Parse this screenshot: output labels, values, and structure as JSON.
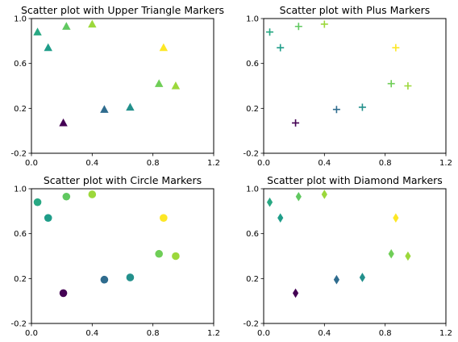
{
  "chart_data": [
    {
      "type": "scatter",
      "title": "Scatter plot with Upper Triangle Markers",
      "marker": "triangle-up",
      "colormap": "viridis",
      "xlim": [
        0.0,
        1.2
      ],
      "ylim": [
        -0.2,
        1.0
      ],
      "xticks": [
        "0.0",
        "0.4",
        "0.8",
        "1.2"
      ],
      "yticks": [
        "-0.2",
        "0.2",
        "0.6",
        "1.0"
      ],
      "grid": false,
      "points": [
        {
          "x": 0.04,
          "y": 0.88,
          "c": 0.6
        },
        {
          "x": 0.11,
          "y": 0.74,
          "c": 0.55
        },
        {
          "x": 0.23,
          "y": 0.93,
          "c": 0.75
        },
        {
          "x": 0.4,
          "y": 0.95,
          "c": 0.85
        },
        {
          "x": 0.87,
          "y": 0.74,
          "c": 1.0
        },
        {
          "x": 0.84,
          "y": 0.42,
          "c": 0.78
        },
        {
          "x": 0.95,
          "y": 0.4,
          "c": 0.85
        },
        {
          "x": 0.21,
          "y": 0.07,
          "c": 0.0
        },
        {
          "x": 0.48,
          "y": 0.19,
          "c": 0.35
        },
        {
          "x": 0.65,
          "y": 0.21,
          "c": 0.5
        }
      ]
    },
    {
      "type": "scatter",
      "title": "Scatter plot with Plus Markers",
      "marker": "plus",
      "colormap": "viridis",
      "xlim": [
        0.0,
        1.2
      ],
      "ylim": [
        -0.2,
        1.0
      ],
      "xticks": [
        "0.0",
        "0.4",
        "0.8",
        "1.2"
      ],
      "yticks": [
        "-0.2",
        "0.2",
        "0.6",
        "1.0"
      ],
      "grid": false,
      "points": [
        {
          "x": 0.04,
          "y": 0.88,
          "c": 0.6
        },
        {
          "x": 0.11,
          "y": 0.74,
          "c": 0.55
        },
        {
          "x": 0.23,
          "y": 0.93,
          "c": 0.75
        },
        {
          "x": 0.4,
          "y": 0.95,
          "c": 0.85
        },
        {
          "x": 0.87,
          "y": 0.74,
          "c": 1.0
        },
        {
          "x": 0.84,
          "y": 0.42,
          "c": 0.78
        },
        {
          "x": 0.95,
          "y": 0.4,
          "c": 0.85
        },
        {
          "x": 0.21,
          "y": 0.07,
          "c": 0.0
        },
        {
          "x": 0.48,
          "y": 0.19,
          "c": 0.35
        },
        {
          "x": 0.65,
          "y": 0.21,
          "c": 0.5
        }
      ]
    },
    {
      "type": "scatter",
      "title": "Scatter plot with Circle Markers",
      "marker": "circle",
      "colormap": "viridis",
      "xlim": [
        0.0,
        1.2
      ],
      "ylim": [
        -0.2,
        1.0
      ],
      "xticks": [
        "0.0",
        "0.4",
        "0.8",
        "1.2"
      ],
      "yticks": [
        "-0.2",
        "0.2",
        "0.6",
        "1.0"
      ],
      "grid": false,
      "points": [
        {
          "x": 0.04,
          "y": 0.88,
          "c": 0.6
        },
        {
          "x": 0.11,
          "y": 0.74,
          "c": 0.55
        },
        {
          "x": 0.23,
          "y": 0.93,
          "c": 0.75
        },
        {
          "x": 0.4,
          "y": 0.95,
          "c": 0.85
        },
        {
          "x": 0.87,
          "y": 0.74,
          "c": 1.0
        },
        {
          "x": 0.84,
          "y": 0.42,
          "c": 0.78
        },
        {
          "x": 0.95,
          "y": 0.4,
          "c": 0.85
        },
        {
          "x": 0.21,
          "y": 0.07,
          "c": 0.0
        },
        {
          "x": 0.48,
          "y": 0.19,
          "c": 0.35
        },
        {
          "x": 0.65,
          "y": 0.21,
          "c": 0.5
        }
      ]
    },
    {
      "type": "scatter",
      "title": "Scatter plot with Diamond Markers",
      "marker": "diamond",
      "colormap": "viridis",
      "xlim": [
        0.0,
        1.2
      ],
      "ylim": [
        -0.2,
        1.0
      ],
      "xticks": [
        "0.0",
        "0.4",
        "0.8",
        "1.2"
      ],
      "yticks": [
        "-0.2",
        "0.2",
        "0.6",
        "1.0"
      ],
      "grid": false,
      "points": [
        {
          "x": 0.04,
          "y": 0.88,
          "c": 0.6
        },
        {
          "x": 0.11,
          "y": 0.74,
          "c": 0.55
        },
        {
          "x": 0.23,
          "y": 0.93,
          "c": 0.75
        },
        {
          "x": 0.4,
          "y": 0.95,
          "c": 0.85
        },
        {
          "x": 0.87,
          "y": 0.74,
          "c": 1.0
        },
        {
          "x": 0.84,
          "y": 0.42,
          "c": 0.78
        },
        {
          "x": 0.95,
          "y": 0.4,
          "c": 0.85
        },
        {
          "x": 0.21,
          "y": 0.07,
          "c": 0.0
        },
        {
          "x": 0.48,
          "y": 0.19,
          "c": 0.35
        },
        {
          "x": 0.65,
          "y": 0.21,
          "c": 0.5
        }
      ]
    }
  ]
}
